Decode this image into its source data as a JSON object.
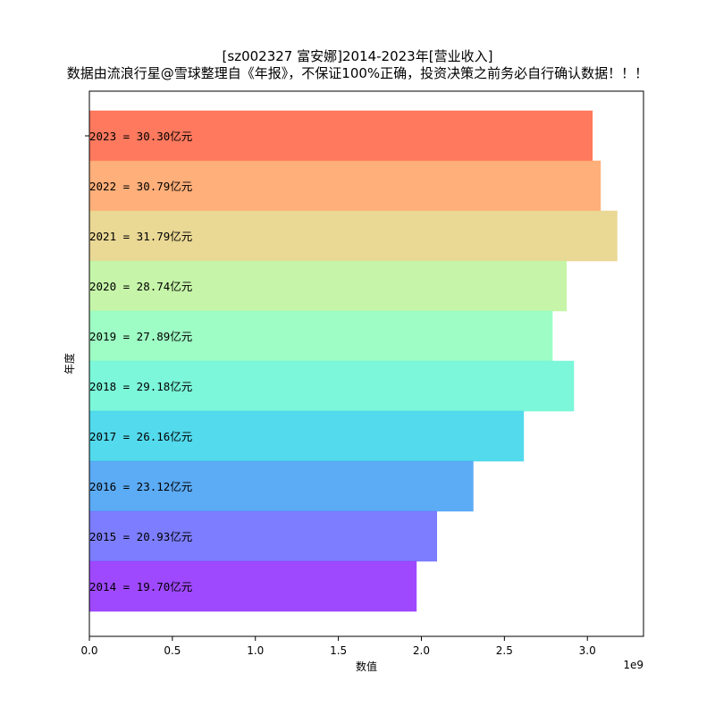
{
  "chart_data": {
    "type": "bar",
    "orientation": "horizontal",
    "title": "[sz002327 富安娜]2014-2023年[营业收入]",
    "subtitle": "数据由流浪行星@雪球整理自《年报》，不保证100%正确，投资决策之前务必自行确认数据！！！",
    "xlabel": "数值",
    "ylabel": "年度",
    "x_scale_label": "1e9",
    "xlim": [
      0,
      3338000000.0
    ],
    "x_ticks": [
      0,
      500000000.0,
      1000000000.0,
      1500000000.0,
      2000000000.0,
      2500000000.0,
      3000000000.0
    ],
    "x_tick_labels": [
      "0.0",
      "0.5",
      "1.0",
      "1.5",
      "2.0",
      "2.5",
      "3.0"
    ],
    "grid": false,
    "categories": [
      "2023",
      "2022",
      "2021",
      "2020",
      "2019",
      "2018",
      "2017",
      "2016",
      "2015",
      "2014"
    ],
    "values": [
      3030000000,
      3079000000,
      3179000000,
      2874000000,
      2789000000,
      2918000000,
      2616000000,
      2312000000,
      2093000000,
      1970000000
    ],
    "bar_labels": [
      "2023 = 30.30亿元",
      "2022 = 30.79亿元",
      "2021 = 31.79亿元",
      "2020 = 28.74亿元",
      "2019 = 27.89亿元",
      "2018 = 29.18亿元",
      "2017 = 26.16亿元",
      "2016 = 23.12亿元",
      "2015 = 20.93亿元",
      "2014 = 19.70亿元"
    ],
    "colors": [
      "#ff6a4d",
      "#ffa66b",
      "#e8d48a",
      "#c0f4a0",
      "#94fdbe",
      "#6ef6d6",
      "#40d6ea",
      "#4aa2f4",
      "#6f70ff",
      "#9535ff"
    ]
  }
}
